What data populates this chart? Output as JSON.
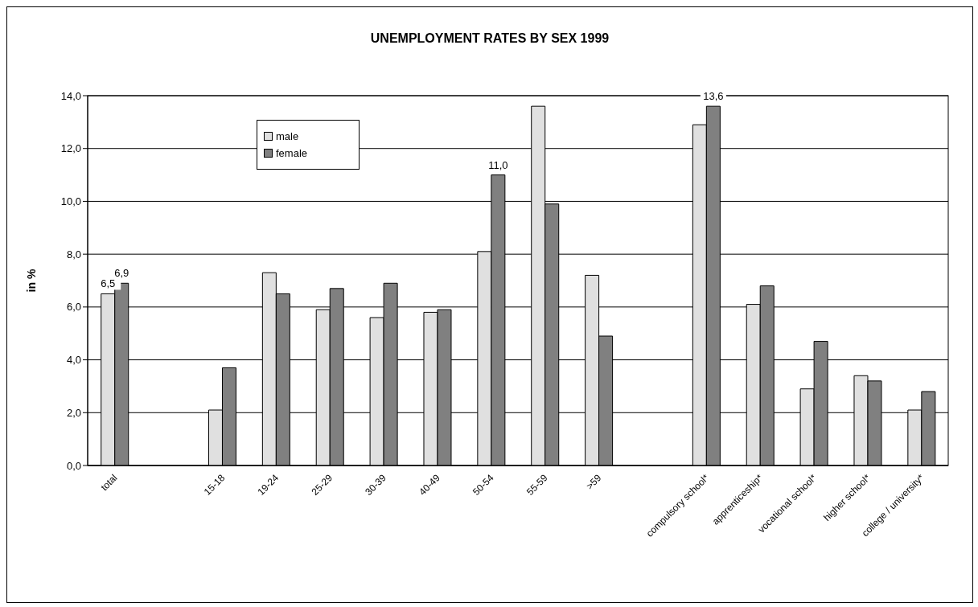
{
  "chart_data": {
    "type": "bar",
    "title": "UNEMPLOYMENT RATES BY SEX 1999",
    "ylabel": "in %",
    "categories": [
      "total",
      null,
      "15-18",
      "19-24",
      "25-29",
      "30-39",
      "40-49",
      "50-54",
      "55-59",
      ">59",
      null,
      "compulsory school*",
      "apprenticeship*",
      "vocational school*",
      "higher school*",
      "college / university*"
    ],
    "series": [
      {
        "name": "male",
        "color": "#e0e0e0",
        "values": [
          6.5,
          null,
          2.1,
          7.3,
          5.9,
          5.6,
          5.8,
          8.1,
          13.6,
          7.2,
          null,
          12.9,
          6.1,
          2.9,
          3.4,
          2.1
        ],
        "value_labels": [
          "6,5",
          null,
          null,
          null,
          null,
          null,
          null,
          null,
          null,
          null,
          null,
          null,
          null,
          null,
          null,
          null
        ]
      },
      {
        "name": "female",
        "color": "#808080",
        "values": [
          6.9,
          null,
          3.7,
          6.5,
          6.7,
          6.9,
          5.9,
          11.0,
          9.9,
          4.9,
          null,
          13.6,
          6.8,
          4.7,
          3.2,
          2.8
        ],
        "value_labels": [
          "6,9",
          null,
          null,
          null,
          null,
          null,
          null,
          "11,0",
          null,
          null,
          null,
          "13,6",
          null,
          null,
          null,
          null
        ]
      }
    ],
    "ylim": [
      0,
      14
    ],
    "yticks": [
      {
        "value": 0,
        "label": "0,0"
      },
      {
        "value": 2,
        "label": "2,0"
      },
      {
        "value": 4,
        "label": "4,0"
      },
      {
        "value": 6,
        "label": "6,0"
      },
      {
        "value": 8,
        "label": "8,0"
      },
      {
        "value": 10,
        "label": "10,0"
      },
      {
        "value": 12,
        "label": "12,0"
      },
      {
        "value": 14,
        "label": "14,0"
      }
    ],
    "grid": "y",
    "legend": "top left"
  }
}
